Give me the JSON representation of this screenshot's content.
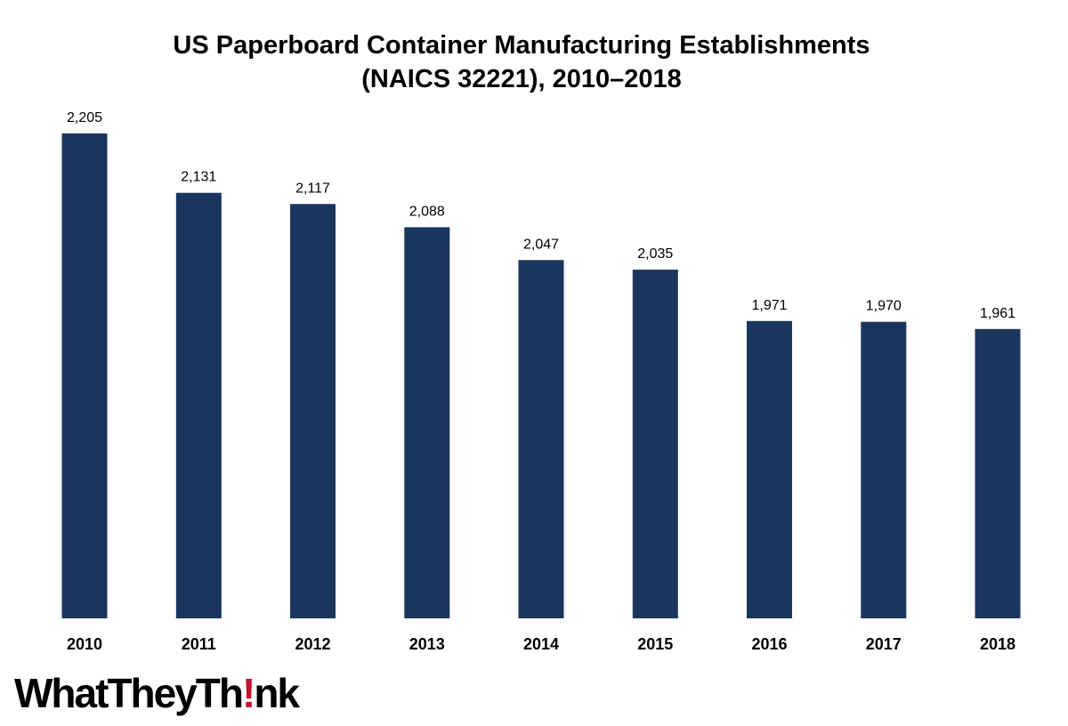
{
  "chart_data": {
    "type": "bar",
    "title": "US Paperboard Container Manufacturing Establishments (NAICS 32221), 2010–2018",
    "title_lines": [
      "US Paperboard Container Manufacturing Establishments",
      "(NAICS 32221), 2010–2018"
    ],
    "categories": [
      "2010",
      "2011",
      "2012",
      "2013",
      "2014",
      "2015",
      "2016",
      "2017",
      "2018"
    ],
    "values": [
      2205,
      2131,
      2117,
      2088,
      2047,
      2035,
      1971,
      1970,
      1961
    ],
    "value_labels": [
      "2,205",
      "2,131",
      "2,117",
      "2,088",
      "2,047",
      "2,035",
      "1,971",
      "1,970",
      "1,961"
    ],
    "xlabel": "",
    "ylabel": "",
    "ylim": [
      1600,
      2205
    ],
    "grid": false,
    "legend": "none",
    "bar_color": "#1b365d"
  },
  "logo": {
    "text": "WhatTheyThink",
    "accent_color": "#c8102e"
  }
}
